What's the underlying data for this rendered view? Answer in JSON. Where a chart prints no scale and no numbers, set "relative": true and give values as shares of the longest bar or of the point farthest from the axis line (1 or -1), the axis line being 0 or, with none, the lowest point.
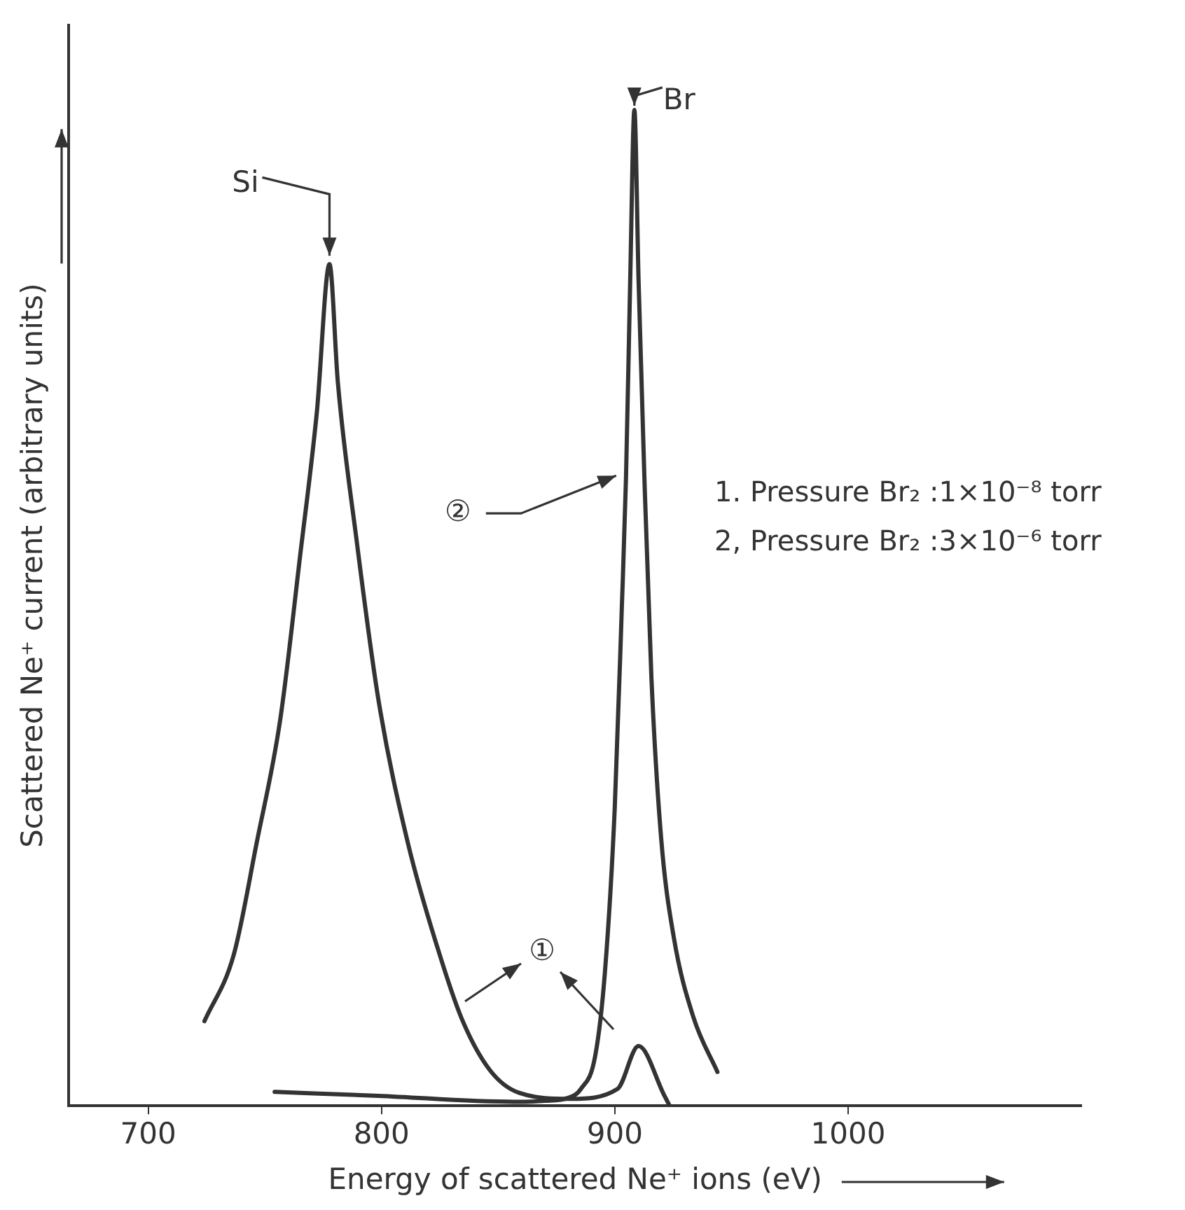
{
  "chart_data": {
    "type": "line",
    "relative": true,
    "xlabel": "Energy of scattered Ne⁺ ions (eV)",
    "ylabel": "Scattered Ne⁺ current (arbitrary units)",
    "xlim": [
      666,
      1100
    ],
    "xticks": [
      700,
      800,
      900,
      1000
    ],
    "marker": "none",
    "line_style": "solid",
    "series": [
      {
        "color": "#333333",
        "x": [
          724.1,
          736.7,
          746.4,
          756.6,
          765.1,
          772.3,
          777.7,
          781.3,
          789.2,
          798.8,
          811.4,
          824.1,
          834.3,
          846.4,
          859.0,
          881.3,
          901.2,
          910.2,
          921.1,
          923.5
        ],
        "values": [
          0.085,
          0.152,
          0.263,
          0.388,
          0.552,
          0.697,
          0.845,
          0.726,
          0.57,
          0.406,
          0.263,
          0.158,
          0.088,
          0.036,
          0.013,
          0.007,
          0.017,
          0.06,
          0.011,
          0
        ]
      },
      {
        "color": "#333333",
        "x": [
          754.2,
          798.8,
          856.6,
          870,
          880,
          885.5,
          891.6,
          895.8,
          900,
          903,
          904.8,
          906.6,
          908.4,
          910.2,
          912.7,
          915.7,
          919.9,
          925.3,
          933.7,
          944
        ],
        "values": [
          0.014,
          0.01,
          0.004,
          0.005,
          0.008,
          0.017,
          0.05,
          0.135,
          0.3,
          0.499,
          0.63,
          0.828,
          1.0,
          0.828,
          0.63,
          0.43,
          0.268,
          0.169,
          0.089,
          0.034
        ]
      }
    ],
    "annotations": [
      {
        "text": "Si",
        "x": 777.7,
        "y": 0.845
      },
      {
        "text": "Br",
        "x": 908.4,
        "y": 1.0
      },
      {
        "text": "②",
        "x": 903,
        "y": 0.63
      },
      "①",
      "1. Pressure Br₂ :1×10⁻⁸ torr",
      "2, Pressure Br₂ :3×10⁻⁶ torr"
    ]
  }
}
